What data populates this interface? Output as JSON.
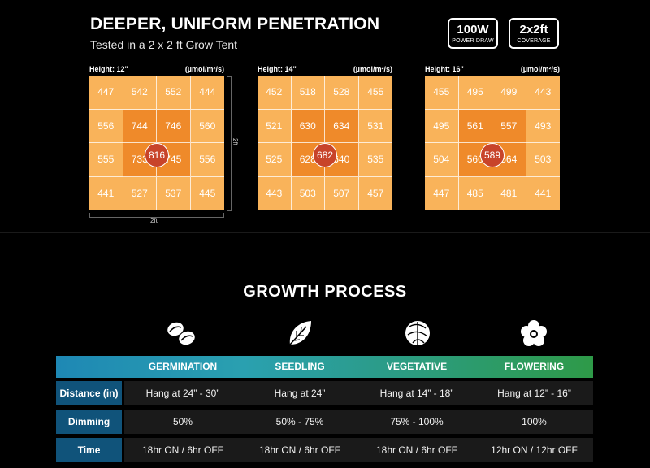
{
  "header": {
    "title": "DEEPER, UNIFORM PENETRATION",
    "subtitle": "Tested in a 2 x 2 ft Grow Tent",
    "badges": [
      {
        "big": "100W",
        "small": "POWER DRAW"
      },
      {
        "big": "2x2ft",
        "small": "COVERAGE"
      }
    ]
  },
  "grids": [
    {
      "height_label": "Height:",
      "height_value": "12\"",
      "unit": "(µmol/m²/s)",
      "center": "816",
      "cells": [
        "447",
        "542",
        "552",
        "444",
        "556",
        "744",
        "746",
        "560",
        "555",
        "733",
        "745",
        "556",
        "441",
        "527",
        "537",
        "445"
      ]
    },
    {
      "height_label": "Height:",
      "height_value": "14\"",
      "unit": "(µmol/m²/s)",
      "center": "682",
      "cells": [
        "452",
        "518",
        "528",
        "455",
        "521",
        "630",
        "634",
        "531",
        "525",
        "628",
        "640",
        "535",
        "443",
        "503",
        "507",
        "457"
      ]
    },
    {
      "height_label": "Height:",
      "height_value": "16\"",
      "unit": "(µmol/m²/s)",
      "center": "589",
      "cells": [
        "455",
        "495",
        "499",
        "443",
        "495",
        "561",
        "557",
        "493",
        "504",
        "560",
        "564",
        "503",
        "447",
        "485",
        "481",
        "441"
      ]
    }
  ],
  "dimensions": {
    "side": "2ft",
    "bottom": "2ft"
  },
  "growth": {
    "title": "GROWTH PROCESS",
    "stages": [
      "GERMINATION",
      "SEEDLING",
      "VEGETATIVE",
      "FLOWERING"
    ],
    "stage_icons": [
      "seeds-icon",
      "leaf-icon",
      "cabbage-icon",
      "flower-icon"
    ],
    "rows": [
      {
        "label": "Distance (in)",
        "values": [
          "Hang at 24” - 30”",
          "Hang at 24”",
          "Hang at 14” - 18”",
          "Hang at 12” - 16”"
        ]
      },
      {
        "label": "Dimming",
        "values": [
          "50%",
          "50% - 75%",
          "75% - 100%",
          "100%"
        ]
      },
      {
        "label": "Time",
        "values": [
          "18hr ON / 6hr OFF",
          "18hr ON / 6hr OFF",
          "18hr ON / 6hr OFF",
          "12hr ON / 12hr OFF"
        ]
      }
    ]
  },
  "colors": {
    "cell_outer": "#f9b35a",
    "cell_inner": "#ef8a2a",
    "center": "#c8442a",
    "row_label": "#10537a"
  }
}
